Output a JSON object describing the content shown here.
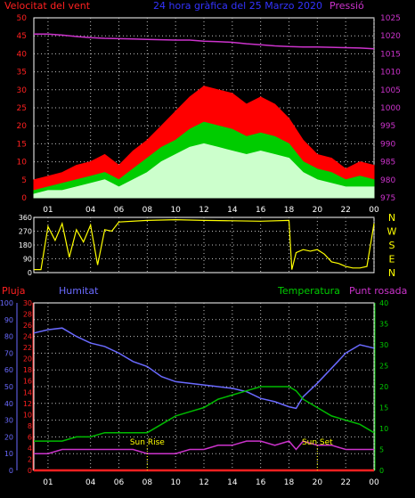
{
  "header": {
    "wind_label": "Velocitat del vent",
    "title": "24 hora gràfica del  25 Marzo 2020",
    "pressure_label": "Pressió"
  },
  "colors": {
    "wind_gust": "#ff0000",
    "wind_avg": "#00cc00",
    "wind_min": "#ccffcc",
    "pressure": "#cc33cc",
    "direction": "#ffff00",
    "rain": "#ff2020",
    "humidity": "#6a6aff",
    "temperature": "#00bb00",
    "dewpoint": "#cc33cc",
    "sun_marker": "#ffff00",
    "grid": "#c0c0c0",
    "axis_left": "#ff2020",
    "axis_right": "#cc33cc"
  },
  "time_axis": {
    "labels": [
      "01",
      "04",
      "06",
      "08",
      "10",
      "12",
      "14",
      "16",
      "18",
      "20",
      "22",
      "00"
    ],
    "hours": [
      1,
      4,
      6,
      8,
      10,
      12,
      14,
      16,
      18,
      20,
      22,
      24
    ]
  },
  "chart_data": [
    {
      "type": "area",
      "title": "",
      "ylabel_left": "Velocitat del vent",
      "ylabel_right": "Pressió",
      "ylim_left": [
        0,
        50
      ],
      "yticks_left": [
        0,
        5,
        10,
        15,
        20,
        25,
        30,
        35,
        40,
        45,
        50
      ],
      "ylim_right": [
        975,
        1025
      ],
      "yticks_right": [
        975,
        980,
        985,
        990,
        995,
        1000,
        1005,
        1010,
        1015,
        1020,
        1025
      ],
      "x_hours": [
        0,
        1,
        2,
        3,
        4,
        5,
        6,
        7,
        8,
        9,
        10,
        11,
        12,
        13,
        14,
        15,
        16,
        17,
        18,
        19,
        20,
        21,
        22,
        23,
        24
      ],
      "series": [
        {
          "name": "gust",
          "axis": "left",
          "values": [
            5,
            6,
            7,
            9,
            10,
            12,
            9,
            13,
            16,
            20,
            24,
            28,
            31,
            30,
            29,
            26,
            28,
            26,
            22,
            16,
            12,
            11,
            8,
            10,
            9
          ]
        },
        {
          "name": "average",
          "axis": "left",
          "values": [
            2,
            3,
            4,
            5,
            6,
            7,
            5,
            8,
            11,
            14,
            16,
            19,
            21,
            20,
            19,
            17,
            18,
            17,
            15,
            10,
            8,
            7,
            5,
            6,
            5
          ]
        },
        {
          "name": "minimum",
          "axis": "left",
          "values": [
            1,
            2,
            2,
            3,
            4,
            5,
            3,
            5,
            7,
            10,
            12,
            14,
            15,
            14,
            13,
            12,
            13,
            12,
            11,
            7,
            5,
            4,
            3,
            3,
            3
          ]
        },
        {
          "name": "pressure",
          "axis": "right",
          "values": [
            1020.5,
            1020.5,
            1020.2,
            1019.8,
            1019.5,
            1019.3,
            1019.2,
            1019.1,
            1019.0,
            1018.9,
            1018.8,
            1018.8,
            1018.5,
            1018.4,
            1018.2,
            1017.8,
            1017.5,
            1017.2,
            1017.0,
            1016.9,
            1016.9,
            1016.8,
            1016.7,
            1016.6,
            1016.4
          ]
        }
      ]
    },
    {
      "type": "line",
      "title": "",
      "ylim": [
        0,
        360
      ],
      "yticks": [
        0,
        90,
        180,
        270,
        360
      ],
      "compass_labels": [
        "N",
        "W",
        "S",
        "E",
        "N"
      ],
      "x_hours": [
        0,
        0.5,
        1,
        1.5,
        2,
        2.5,
        3,
        3.5,
        4,
        4.5,
        5,
        5.5,
        6,
        8,
        10,
        12,
        14,
        16,
        18,
        18.2,
        18.5,
        19,
        19.5,
        20,
        20.5,
        21,
        21.5,
        22,
        22.5,
        23,
        23.5,
        24
      ],
      "series": [
        {
          "name": "direction",
          "values": [
            20,
            20,
            300,
            210,
            320,
            100,
            280,
            200,
            310,
            50,
            280,
            270,
            330,
            340,
            345,
            340,
            338,
            335,
            340,
            20,
            130,
            150,
            140,
            150,
            120,
            70,
            60,
            40,
            30,
            30,
            40,
            320
          ]
        }
      ]
    },
    {
      "type": "line",
      "title": "",
      "ylabel_left_1": "Pluja",
      "ylabel_left_2": "Humitat",
      "ylabel_right_1": "Temperatura",
      "ylabel_right_2": "Punt rosada",
      "ylim_rain": [
        0,
        30
      ],
      "yticks_rain": [
        0,
        2,
        4,
        6,
        8,
        10,
        12,
        14,
        16,
        18,
        20,
        22,
        24,
        26,
        28,
        30
      ],
      "ylim_humidity": [
        0,
        100
      ],
      "yticks_humidity": [
        0,
        10,
        20,
        30,
        40,
        50,
        60,
        70,
        80,
        90,
        100
      ],
      "ylim_temperature": [
        0,
        40
      ],
      "yticks_temperature": [
        0,
        5,
        10,
        15,
        20,
        25,
        30,
        35,
        40
      ],
      "x_hours": [
        0,
        1,
        2,
        3,
        4,
        5,
        6,
        7,
        8,
        9,
        10,
        11,
        12,
        13,
        14,
        15,
        16,
        17,
        18,
        18.5,
        19,
        20,
        21,
        22,
        23,
        24
      ],
      "series": [
        {
          "name": "rain",
          "axis": "rain",
          "values": [
            0,
            0,
            0,
            0,
            0,
            0,
            0,
            0,
            0,
            0,
            0,
            0,
            0,
            0,
            0,
            0,
            0,
            0,
            0,
            0,
            0,
            0,
            0,
            0,
            0,
            0
          ]
        },
        {
          "name": "humidity",
          "axis": "humidity",
          "values": [
            82,
            84,
            85,
            80,
            76,
            74,
            70,
            65,
            62,
            56,
            53,
            52,
            51,
            50,
            49,
            47,
            43,
            41,
            38,
            37,
            44,
            52,
            61,
            70,
            75,
            73
          ]
        },
        {
          "name": "temperature",
          "axis": "temperature",
          "values": [
            7,
            7,
            7,
            8,
            8,
            9,
            9,
            9,
            9,
            11,
            13,
            14,
            15,
            17,
            18,
            19,
            20,
            20,
            20,
            19,
            17,
            15,
            13,
            12,
            11,
            9
          ]
        },
        {
          "name": "dewpoint",
          "axis": "temperature",
          "values": [
            4,
            4,
            5,
            5,
            5,
            5,
            5,
            5,
            4,
            4,
            4,
            5,
            5,
            6,
            6,
            7,
            7,
            6,
            7,
            5,
            7,
            6,
            6,
            5,
            5,
            5
          ]
        }
      ],
      "annotations": [
        {
          "text": "Sun Rise",
          "x_hour": 8
        },
        {
          "text": "Sun Set",
          "x_hour": 20
        }
      ]
    }
  ]
}
